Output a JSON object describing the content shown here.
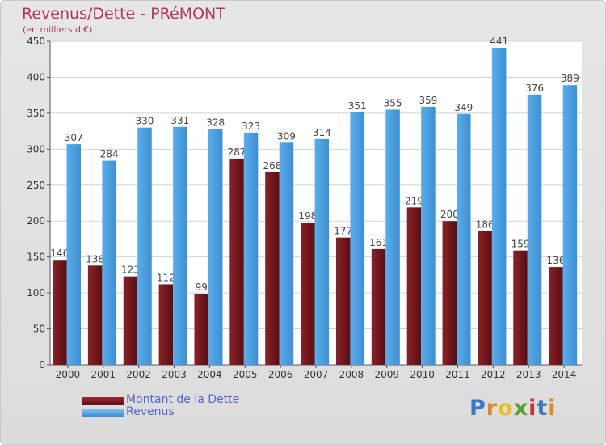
{
  "chart_data": {
    "type": "bar",
    "title": "Revenus/Dette - PRéMONT",
    "subtitle": "(en milliers d'€)",
    "categories": [
      "2000",
      "2001",
      "2002",
      "2003",
      "2004",
      "2005",
      "2006",
      "2007",
      "2008",
      "2009",
      "2010",
      "2011",
      "2012",
      "2013",
      "2014"
    ],
    "series": [
      {
        "name": "Montant de la Dette",
        "color": "#6e1418",
        "values": [
          146,
          138,
          123,
          112,
          99,
          287,
          268,
          198,
          177,
          161,
          219,
          200,
          186,
          159,
          136
        ]
      },
      {
        "name": "Revenus",
        "color": "#4a9fe0",
        "values": [
          307,
          284,
          330,
          331,
          328,
          323,
          309,
          314,
          351,
          355,
          359,
          349,
          441,
          376,
          389
        ]
      }
    ],
    "ylim": [
      0,
      450
    ],
    "yticks": [
      0,
      50,
      100,
      150,
      200,
      250,
      300,
      350,
      400,
      450
    ],
    "grid": true,
    "legend_position": "bottom-left"
  },
  "brand": {
    "name": "Proxiti",
    "letters": [
      "P",
      "r",
      "o",
      "x",
      "i",
      "t",
      "i"
    ],
    "colors": [
      "#3a78c8",
      "#e08a1e",
      "#e8c020",
      "#5aa02c",
      "#d03030",
      "#3a78c8",
      "#e08a1e"
    ]
  }
}
